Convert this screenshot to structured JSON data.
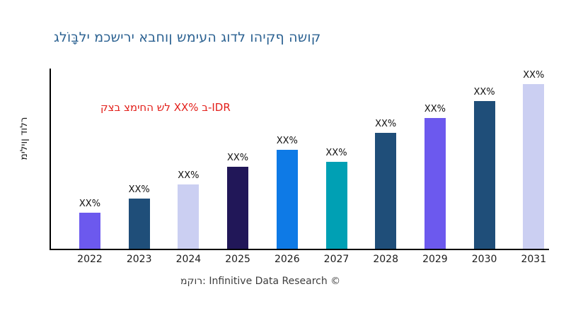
{
  "title": {
    "text": "גלוֹבָּלי מכשירי אבחון שמיעה גודל והיקף השוק",
    "color": "#2c6292"
  },
  "annotation": {
    "text": "קצב צמיחה של XX% ב-IDR",
    "color": "#e3201b"
  },
  "y_axis_label": "מיליון דולר",
  "footer": {
    "text": "מקור: Infinitive Data Research ©"
  },
  "chart_data": {
    "type": "bar",
    "title": "גלוֹבָּלי מכשירי אבחון שמיעה גודל והיקף השוק",
    "ylabel": "מיליון דולר",
    "xlabel": "",
    "categories": [
      "2022",
      "2023",
      "2024",
      "2025",
      "2026",
      "2027",
      "2028",
      "2029",
      "2030",
      "2031"
    ],
    "value_labels": [
      "XX%",
      "XX%",
      "XX%",
      "XX%",
      "XX%",
      "XX%",
      "XX%",
      "XX%",
      "XX%",
      "XX%"
    ],
    "relative_heights_pct_of_max": [
      21.9,
      30.5,
      39.1,
      49.8,
      60.1,
      52.8,
      70.4,
      79.4,
      89.7,
      100
    ],
    "bar_colors": [
      "#6c59ee",
      "#1f4e79",
      "#cbcff2",
      "#211758",
      "#0e7ae6",
      "#00a0b4",
      "#1f4e79",
      "#6c59ee",
      "#1f4e79",
      "#cbcff2"
    ],
    "annotation": "קצב צמיחה של XX% ב-IDR",
    "y_ticks_visible": false,
    "grid": false,
    "legend": "none"
  }
}
